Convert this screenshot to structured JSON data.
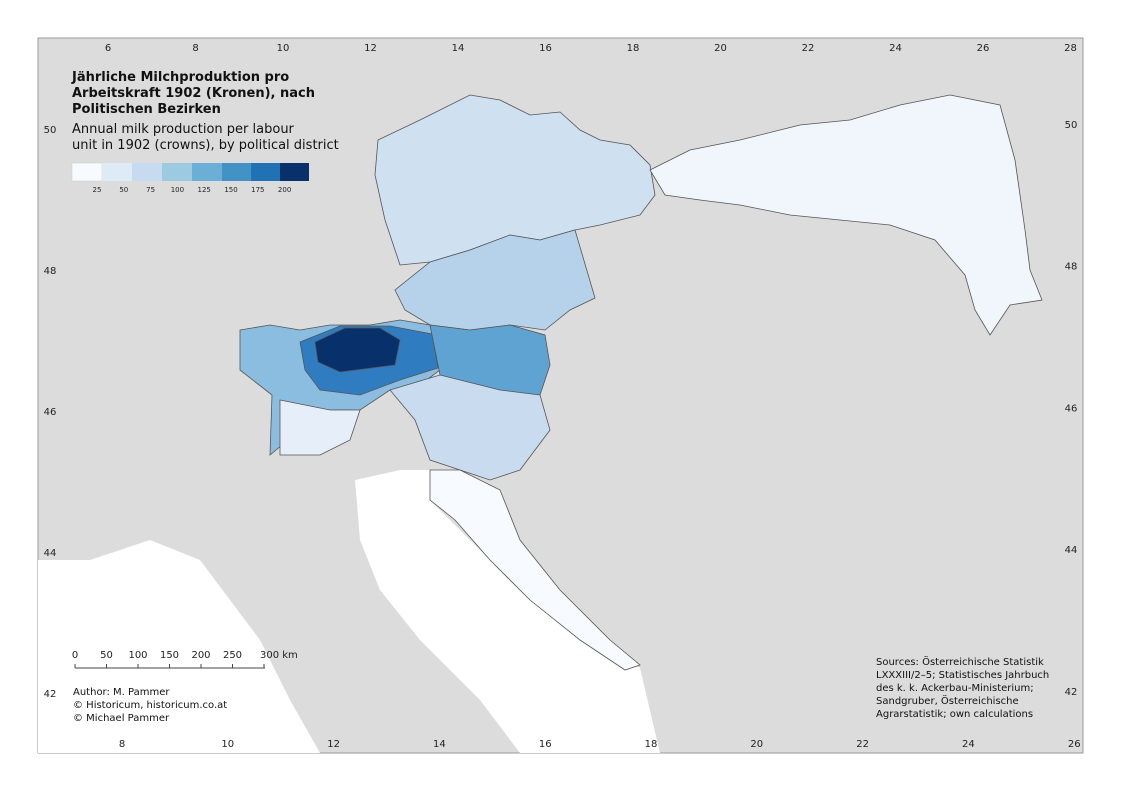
{
  "title": [
    "Jährliche Milchproduktion pro",
    "Arbeitskraft 1902 (Kronen), nach",
    "Politischen Bezirken"
  ],
  "subtitle": [
    "Annual milk production per labour",
    "unit in 1902 (crowns), by political district"
  ],
  "legend": {
    "labels": [
      25,
      50,
      75,
      100,
      125,
      150,
      175,
      200
    ]
  },
  "scale_bar": {
    "labels": [
      "0",
      "50",
      "100",
      "150",
      "200",
      "250",
      "300 km"
    ]
  },
  "graticule": {
    "top": [
      6,
      8,
      10,
      12,
      14,
      16,
      18,
      20,
      22,
      24,
      26,
      28
    ],
    "bottom": [
      8,
      10,
      12,
      14,
      16,
      18,
      20,
      22,
      24,
      26
    ],
    "left": [
      50,
      48,
      46,
      44,
      42
    ],
    "right": [
      50,
      48,
      46,
      44,
      42
    ]
  },
  "author": [
    "Author: M. Pammer",
    "© Historicum, historicum.co.at",
    "© Michael Pammer"
  ],
  "sources": [
    "Sources: Österreichische Statistik",
    "LXXXIII/2–5; Statistisches Jahrbuch",
    "des k. k. Ackerbau-Ministerium;",
    "Sandgruber, Österreichische",
    "Agrarstatistik; own calculations"
  ]
}
